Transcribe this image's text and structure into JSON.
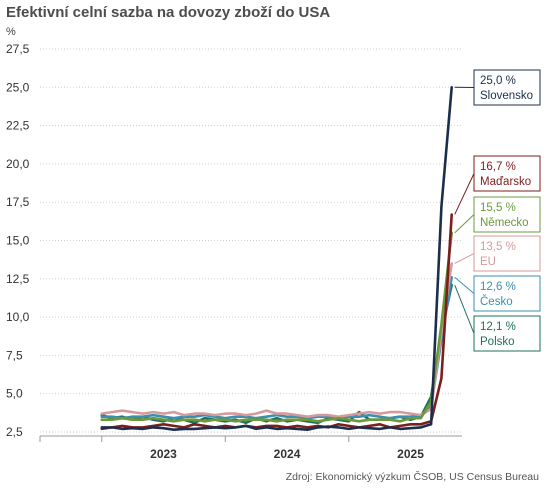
{
  "chart_data": {
    "type": "line",
    "title": "Efektivní celní sazba na dovozy zboží do USA",
    "ylabel": "%",
    "source": "Zdroj: Ekonomický výzkum ČSOB, US Census Bureau",
    "ylim": [
      2.5,
      27.5
    ],
    "y_ticks": [
      "2,5",
      "5,0",
      "7,5",
      "10,0",
      "12,5",
      "15,0",
      "17,5",
      "20,0",
      "22,5",
      "25,0",
      "27,5"
    ],
    "y_tick_values": [
      2.5,
      5,
      7.5,
      10,
      12.5,
      15,
      17.5,
      20,
      22.5,
      25,
      27.5
    ],
    "x_range": [
      "2022-01",
      "2025-06"
    ],
    "x_year_labels": [
      {
        "label": "2023",
        "at": "2023-01"
      },
      {
        "label": "2024",
        "at": "2024-01"
      },
      {
        "label": "2025",
        "at": "2025-01"
      }
    ],
    "x_dividers": [
      "2022-07",
      "2023-07",
      "2024-07"
    ],
    "x": [
      "2022-07",
      "2022-08",
      "2022-09",
      "2022-10",
      "2022-11",
      "2022-12",
      "2023-01",
      "2023-02",
      "2023-03",
      "2023-04",
      "2023-05",
      "2023-06",
      "2023-07",
      "2023-08",
      "2023-09",
      "2023-10",
      "2023-11",
      "2023-12",
      "2024-01",
      "2024-02",
      "2024-03",
      "2024-04",
      "2024-05",
      "2024-06",
      "2024-07",
      "2024-08",
      "2024-09",
      "2024-10",
      "2024-11",
      "2024-12",
      "2025-01",
      "2025-02",
      "2025-03",
      "2025-04",
      "2025-05"
    ],
    "series": [
      {
        "name": "Slovensko",
        "value_label": "25,0 %",
        "color": "#1b2f4d",
        "values": [
          2.8,
          2.8,
          2.7,
          2.75,
          2.7,
          2.8,
          2.75,
          2.65,
          2.7,
          2.7,
          2.75,
          2.8,
          2.75,
          2.8,
          2.9,
          2.7,
          2.8,
          2.7,
          2.75,
          2.7,
          2.65,
          2.8,
          2.85,
          2.8,
          2.7,
          2.8,
          2.75,
          2.7,
          2.8,
          2.7,
          2.75,
          2.8,
          3.0,
          17.2,
          25.0
        ]
      },
      {
        "name": "Maďarsko",
        "value_label": "16,7 %",
        "color": "#7a1e1e",
        "values": [
          2.7,
          2.8,
          2.9,
          2.8,
          2.8,
          2.9,
          3.0,
          2.9,
          2.8,
          3.0,
          2.9,
          2.8,
          2.9,
          2.8,
          2.9,
          2.8,
          2.9,
          2.9,
          2.8,
          2.9,
          2.8,
          2.9,
          2.8,
          3.0,
          2.9,
          2.8,
          2.9,
          3.0,
          2.8,
          2.9,
          3.0,
          3.0,
          3.2,
          6.0,
          16.7
        ]
      },
      {
        "name": "Německo",
        "value_label": "15,5 %",
        "color": "#6a9a3c",
        "values": [
          3.3,
          3.3,
          3.4,
          3.3,
          3.3,
          3.4,
          3.3,
          3.2,
          3.3,
          3.3,
          3.2,
          3.3,
          3.3,
          3.2,
          3.3,
          3.3,
          3.3,
          3.2,
          3.3,
          3.3,
          3.3,
          3.2,
          3.3,
          3.4,
          3.3,
          3.2,
          3.3,
          3.3,
          3.3,
          3.2,
          3.4,
          3.4,
          4.5,
          9.5,
          15.5
        ]
      },
      {
        "name": "EU",
        "value_label": "13,5 %",
        "color": "#d69a9a",
        "values": [
          3.7,
          3.8,
          3.9,
          3.8,
          3.7,
          3.8,
          3.7,
          3.8,
          3.6,
          3.7,
          3.7,
          3.6,
          3.7,
          3.7,
          3.6,
          3.7,
          3.9,
          3.7,
          3.7,
          3.6,
          3.5,
          3.6,
          3.6,
          3.5,
          3.6,
          3.7,
          3.8,
          3.7,
          3.8,
          3.8,
          3.7,
          3.6,
          4.0,
          9.0,
          13.5
        ]
      },
      {
        "name": "Česko",
        "value_label": "12,6 %",
        "color": "#3d8fb0",
        "values": [
          3.5,
          3.5,
          3.4,
          3.5,
          3.5,
          3.6,
          3.5,
          3.4,
          3.5,
          3.5,
          3.6,
          3.5,
          3.4,
          3.5,
          3.5,
          3.4,
          3.5,
          3.6,
          3.5,
          3.5,
          3.4,
          3.5,
          3.5,
          3.4,
          3.5,
          3.5,
          3.6,
          3.5,
          3.4,
          3.5,
          3.5,
          3.6,
          4.2,
          8.5,
          12.6
        ]
      },
      {
        "name": "Polsko",
        "value_label": "12,1 %",
        "color": "#1f6f5c",
        "values": [
          3.6,
          3.4,
          3.5,
          3.3,
          3.5,
          3.3,
          3.2,
          3.4,
          3.3,
          3.1,
          3.4,
          3.3,
          3.2,
          3.3,
          3.1,
          3.4,
          3.2,
          3.4,
          3.2,
          3.3,
          3.2,
          3.1,
          3.4,
          3.3,
          3.2,
          3.8,
          3.3,
          3.3,
          3.4,
          3.5,
          3.3,
          3.5,
          4.8,
          9.0,
          12.1
        ]
      }
    ]
  }
}
